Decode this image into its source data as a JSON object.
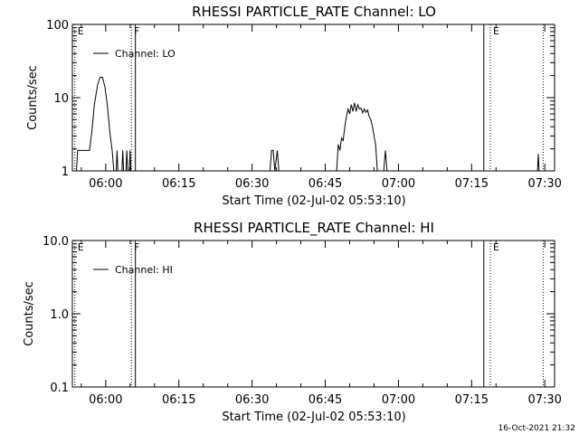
{
  "chart_data": [
    {
      "type": "line",
      "title": "RHESSI PARTICLE_RATE Channel: LO",
      "xlabel": "Start Time (02-Jul-02 05:53:10)",
      "ylabel": "Counts/sec",
      "yscale": "log",
      "ylim": [
        1,
        100
      ],
      "xlim": [
        "05:53:10",
        "07:32:00"
      ],
      "x_ticks": [
        "06:00",
        "06:15",
        "06:30",
        "06:45",
        "07:00",
        "07:15",
        "07:30"
      ],
      "y_ticks": [
        "1",
        "10",
        "100"
      ],
      "legend": "top-left",
      "grid": false,
      "series": [
        {
          "name": "Channel: LO",
          "points": [
            [
              "05:54:00",
              1
            ],
            [
              "05:54:15",
              1.9
            ],
            [
              "05:56:40",
              1.9
            ],
            [
              "05:57:10",
              3.5
            ],
            [
              "05:57:40",
              8
            ],
            [
              "05:58:20",
              15
            ],
            [
              "05:58:50",
              19
            ],
            [
              "05:59:20",
              19
            ],
            [
              "05:59:50",
              14
            ],
            [
              "06:00:20",
              8
            ],
            [
              "06:00:50",
              3.5
            ],
            [
              "06:01:20",
              1.9
            ],
            [
              "06:01:40",
              1
            ],
            [
              "06:02:10",
              1
            ],
            [
              "06:02:20",
              1.9
            ],
            [
              "06:02:30",
              1
            ],
            [
              "06:03:20",
              1
            ],
            [
              "06:03:30",
              1.9
            ],
            [
              "06:03:40",
              1
            ],
            [
              "06:04:10",
              1
            ],
            [
              "06:04:20",
              1.9
            ],
            [
              "06:04:30",
              1
            ],
            [
              "06:04:50",
              1
            ],
            [
              "06:05:00",
              1.9
            ],
            [
              "06:05:10",
              1
            ],
            [
              "06:33:40",
              1
            ],
            [
              "06:34:00",
              1.9
            ],
            [
              "06:34:20",
              1.9
            ],
            [
              "06:34:40",
              1
            ],
            [
              "06:35:10",
              1.9
            ],
            [
              "06:35:30",
              1
            ],
            [
              "06:47:20",
              1
            ],
            [
              "06:47:40",
              2.3
            ],
            [
              "06:48:00",
              1.9
            ],
            [
              "06:48:20",
              2.8
            ],
            [
              "06:48:40",
              2.6
            ],
            [
              "06:49:00",
              4
            ],
            [
              "06:49:20",
              5.5
            ],
            [
              "06:49:40",
              7
            ],
            [
              "06:50:00",
              6
            ],
            [
              "06:50:20",
              8
            ],
            [
              "06:50:40",
              6.5
            ],
            [
              "06:51:00",
              8.5
            ],
            [
              "06:51:20",
              6.5
            ],
            [
              "06:51:40",
              8
            ],
            [
              "06:52:00",
              7
            ],
            [
              "06:52:20",
              7.2
            ],
            [
              "06:52:40",
              6.2
            ],
            [
              "06:53:00",
              7
            ],
            [
              "06:53:20",
              6.3
            ],
            [
              "06:53:40",
              6.8
            ],
            [
              "06:54:00",
              5.5
            ],
            [
              "06:54:20",
              5
            ],
            [
              "06:54:40",
              4
            ],
            [
              "06:55:00",
              3
            ],
            [
              "06:55:20",
              2.2
            ],
            [
              "06:55:40",
              1
            ],
            [
              "06:57:00",
              1
            ],
            [
              "06:57:20",
              1.9
            ],
            [
              "06:57:40",
              1
            ],
            [
              "07:28:30",
              1
            ],
            [
              "07:28:40",
              1.7
            ],
            [
              "07:28:50",
              1
            ]
          ]
        }
      ]
    },
    {
      "type": "line",
      "title": "RHESSI PARTICLE_RATE Channel: HI",
      "xlabel": "Start Time (02-Jul-02 05:53:10)",
      "ylabel": "Counts/sec",
      "yscale": "log",
      "ylim": [
        0.1,
        10
      ],
      "xlim": [
        "05:53:10",
        "07:32:00"
      ],
      "x_ticks": [
        "06:00",
        "06:15",
        "06:30",
        "06:45",
        "07:00",
        "07:15",
        "07:30"
      ],
      "y_ticks": [
        "0.1",
        "1.0",
        "10.0"
      ],
      "legend": "top-left",
      "grid": false,
      "series": [
        {
          "name": "Channel: HI",
          "points": []
        }
      ]
    }
  ],
  "markers": [
    {
      "time": "05:53:40",
      "label": "E",
      "style": "dotted"
    },
    {
      "time": "06:05:15",
      "label": "F",
      "style": "dotted"
    },
    {
      "time": "06:06:05",
      "label": "",
      "style": "solid"
    },
    {
      "time": "07:17:30",
      "label": "",
      "style": "solid"
    },
    {
      "time": "07:18:50",
      "label": "E",
      "style": "dotted"
    },
    {
      "time": "07:29:40",
      "label": "",
      "style": "dotted"
    }
  ],
  "timestamp": "16-Oct-2021 21:32"
}
